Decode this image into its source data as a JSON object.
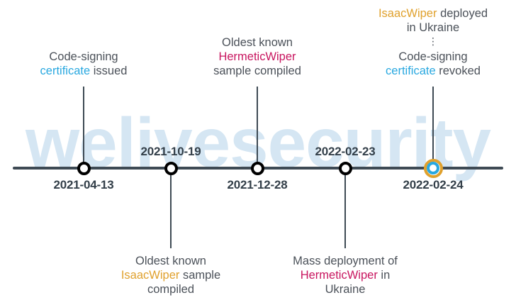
{
  "watermark": "welivesecurity",
  "colors": {
    "blue": "#29a8e0",
    "orange": "#e0a12d",
    "magenta": "#c8155f",
    "line": "#3e4a54",
    "text": "#4b5159",
    "date": "#333f49",
    "watermark": "#d5e6f3"
  },
  "timeline": {
    "type": "horizontal-timeline",
    "subject": "HermeticWiper / IsaacWiper attack timeline"
  },
  "events": [
    {
      "date": "2021-04-13",
      "marker": "blue",
      "label_position": "above",
      "label": [
        [
          {
            "text": "Code-signing",
            "color": "dark"
          }
        ],
        [
          {
            "text": "certificate",
            "color": "blue"
          },
          {
            "text": " issued",
            "color": "dark"
          }
        ]
      ]
    },
    {
      "date": "2021-10-19",
      "marker": "orange",
      "label_position": "below",
      "label": [
        [
          {
            "text": "Oldest known",
            "color": "dark"
          }
        ],
        [
          {
            "text": "IsaacWiper",
            "color": "orange"
          },
          {
            "text": " sample",
            "color": "dark"
          }
        ],
        [
          {
            "text": "compiled",
            "color": "dark"
          }
        ]
      ]
    },
    {
      "date": "2021-12-28",
      "marker": "magenta",
      "label_position": "above",
      "label": [
        [
          {
            "text": "Oldest known",
            "color": "dark"
          }
        ],
        [
          {
            "text": "HermeticWiper",
            "color": "magenta"
          }
        ],
        [
          {
            "text": "sample compiled",
            "color": "dark"
          }
        ]
      ]
    },
    {
      "date": "2022-02-23",
      "marker": "magenta",
      "label_position": "below",
      "label": [
        [
          {
            "text": "Mass deployment of",
            "color": "dark"
          }
        ],
        [
          {
            "text": "HermeticWiper",
            "color": "magenta"
          },
          {
            "text": " in",
            "color": "dark"
          }
        ],
        [
          {
            "text": "Ukraine",
            "color": "dark"
          }
        ]
      ]
    },
    {
      "date": "2022-02-24",
      "marker": "orange-blue",
      "label_position": "above",
      "ellipsis": "⋮",
      "label_upper": [
        [
          {
            "text": "IsaacWiper",
            "color": "orange"
          },
          {
            "text": " deployed",
            "color": "dark"
          }
        ],
        [
          {
            "text": "in Ukraine",
            "color": "dark"
          }
        ]
      ],
      "label_lower": [
        [
          {
            "text": "Code-signing",
            "color": "dark"
          }
        ],
        [
          {
            "text": "certificate",
            "color": "blue"
          },
          {
            "text": " revoked",
            "color": "dark"
          }
        ]
      ]
    }
  ]
}
